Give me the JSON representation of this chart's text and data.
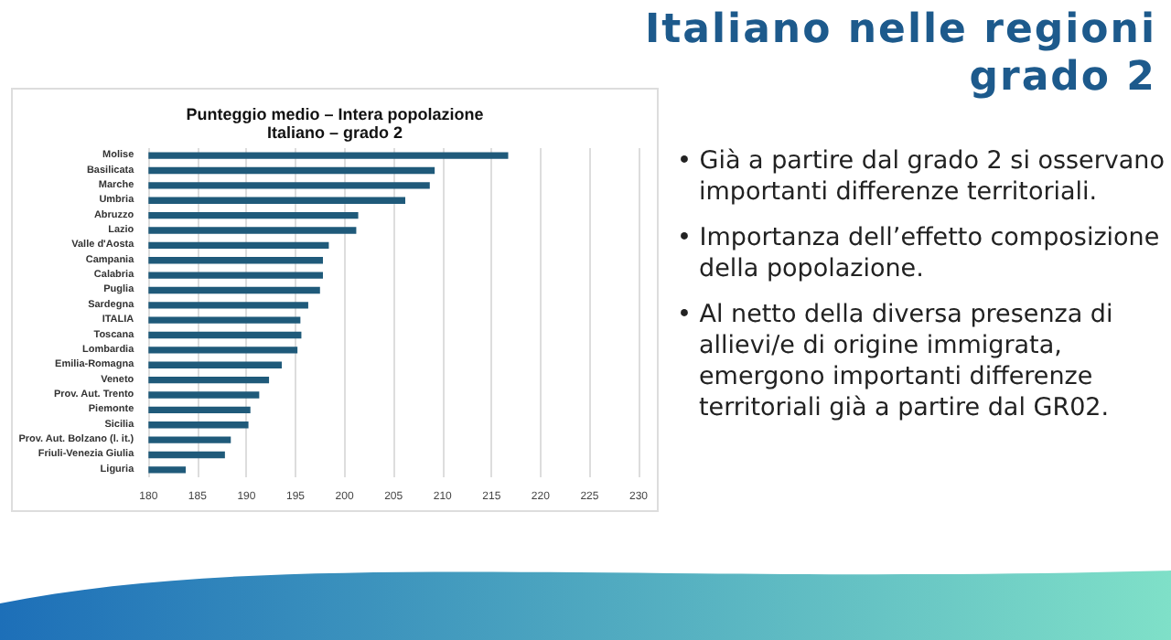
{
  "chart_data": {
    "type": "bar",
    "orientation": "horizontal",
    "title": "Punteggio medio – Intera popolazione",
    "subtitle": "Italiano – grado 2",
    "categories": [
      "Molise",
      "Basilicata",
      "Marche",
      "Umbria",
      "Abruzzo",
      "Lazio",
      "Valle d'Aosta",
      "Campania",
      "Calabria",
      "Puglia",
      "Sardegna",
      "ITALIA",
      "Toscana",
      "Lombardia",
      "Emilia-Romagna",
      "Veneto",
      "Prov. Aut. Trento",
      "Piemonte",
      "Sicilia",
      "Prov. Aut. Bolzano (l. it.)",
      "Friuli-Venezia Giulia",
      "Liguria"
    ],
    "values": [
      216.7,
      209.2,
      208.7,
      206.2,
      201.4,
      201.2,
      198.4,
      197.8,
      197.8,
      197.5,
      196.3,
      195.5,
      195.6,
      195.2,
      193.6,
      192.3,
      191.3,
      190.4,
      190.2,
      188.4,
      187.8,
      183.8
    ],
    "color": "#1f5a7a",
    "xlim": [
      180,
      230
    ],
    "xticks": [
      180,
      185,
      190,
      195,
      200,
      205,
      210,
      215,
      220,
      225,
      230
    ],
    "grid": "x",
    "annotations": [
      "Italiano nelle regioni grado 2",
      "• Già a partire dal grado 2 si osservano importanti differenze territoriali.",
      "• Importanza dell’effetto composizione della popolazione.",
      "• Al netto della diversa presenza di allievi/e di origine immigrata, emergono importanti differenze territoriali già a partire dal GR02."
    ]
  }
}
